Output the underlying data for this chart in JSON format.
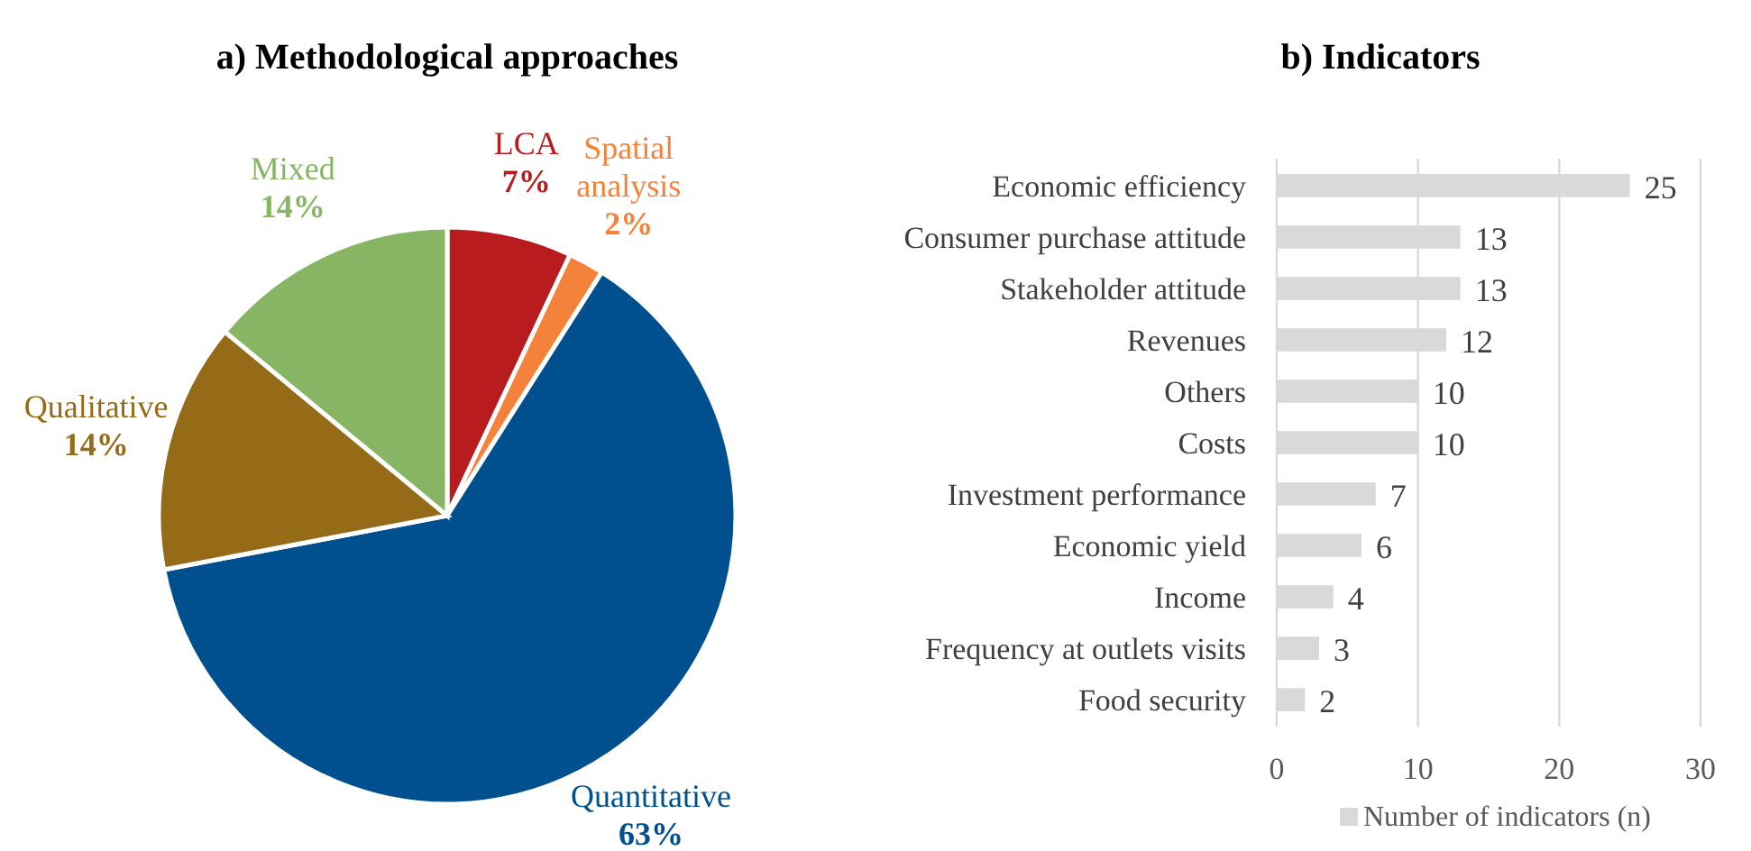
{
  "chart_data": [
    {
      "type": "pie",
      "title": "a) Methodological approaches",
      "categories": [
        "LCA",
        "Spatial analysis",
        "Quantitative",
        "Qualitative",
        "Mixed"
      ],
      "values": [
        7,
        2,
        63,
        14,
        14
      ],
      "colors": [
        "#b81c1f",
        "#f4823a",
        "#00508f",
        "#956b17",
        "#88b563"
      ],
      "value_labels": [
        "7%",
        "2%",
        "63%",
        "14%",
        "14%"
      ]
    },
    {
      "type": "bar",
      "orientation": "horizontal",
      "title": "b) Indicators",
      "categories": [
        "Economic efficiency",
        "Consumer purchase attitude",
        "Stakeholder attitude",
        "Revenues",
        "Others",
        "Costs",
        "Investment performance",
        "Economic yield",
        "Income",
        "Frequency at outlets visits",
        "Food security"
      ],
      "series": [
        {
          "name": "Number of indicators (n)",
          "color": "#d9d9d9",
          "values": [
            25,
            13,
            13,
            12,
            10,
            10,
            7,
            6,
            4,
            3,
            2
          ]
        }
      ],
      "xlim": [
        0,
        30
      ],
      "xticks": [
        0,
        10,
        20,
        30
      ],
      "grid": "x",
      "data_labels": true,
      "legend": "bottom"
    }
  ]
}
